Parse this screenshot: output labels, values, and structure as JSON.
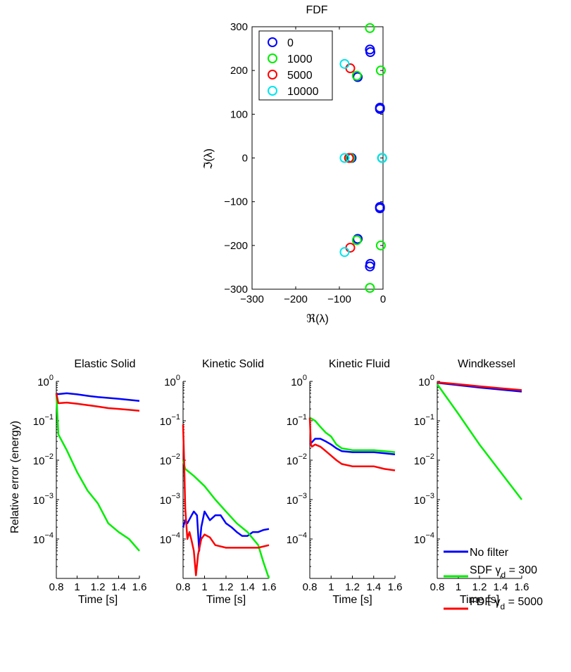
{
  "chart_data": [
    {
      "type": "scatter",
      "title": "FDF",
      "xlabel": "ℜ(λ)",
      "ylabel": "ℑ(λ)",
      "xlim": [
        -300,
        0
      ],
      "ylim": [
        -300,
        300
      ],
      "xticks": [
        -300,
        -200,
        -100,
        0
      ],
      "xtick_labels": [
        "−300",
        "−200",
        "−100",
        "0"
      ],
      "yticks": [
        -300,
        -200,
        -100,
        0,
        100,
        200,
        300
      ],
      "ytick_labels": [
        "−300",
        "−200",
        "−100",
        "0",
        "100",
        "200",
        "300"
      ],
      "marker": "open-circle",
      "legend_position": "top-left",
      "series": [
        {
          "name": "0",
          "color": "#0000ff",
          "points": [
            [
              -30,
              248
            ],
            [
              -29,
              242
            ],
            [
              -7,
              115
            ],
            [
              -7,
              112
            ],
            [
              -7,
              -112
            ],
            [
              -7,
              -115
            ],
            [
              -29,
              -242
            ],
            [
              -30,
              -248
            ],
            [
              -58,
              185
            ],
            [
              -58,
              -185
            ],
            [
              -72,
              0
            ],
            [
              -2,
              0
            ]
          ]
        },
        {
          "name": "1000",
          "color": "#00ee00",
          "points": [
            [
              -30,
              297
            ],
            [
              -5,
              200
            ],
            [
              -5,
              -200
            ],
            [
              -30,
              -297
            ],
            [
              -60,
              188
            ],
            [
              -60,
              -188
            ],
            [
              -75,
              0
            ],
            [
              -2,
              0
            ]
          ]
        },
        {
          "name": "5000",
          "color": "#ff0000",
          "points": [
            [
              -75,
              205
            ],
            [
              -75,
              -205
            ],
            [
              -78,
              0
            ]
          ]
        },
        {
          "name": "10000",
          "color": "#00e5ee",
          "points": [
            [
              -88,
              215
            ],
            [
              -88,
              -215
            ],
            [
              -88,
              0
            ],
            [
              -2,
              0
            ]
          ]
        }
      ]
    },
    {
      "type": "line",
      "title": "Elastic Solid",
      "ylabel": "Relative error (energy)",
      "xlabel": "Time [s]",
      "xlim": [
        0.8,
        1.6
      ],
      "ylim_log10": [
        -5,
        0
      ],
      "series": [
        {
          "name": "No filter",
          "color": "#0000ff",
          "x": [
            0.8,
            0.9,
            1.0,
            1.1,
            1.2,
            1.3,
            1.4,
            1.5,
            1.6
          ],
          "y": [
            0.47,
            0.5,
            0.47,
            0.43,
            0.4,
            0.38,
            0.36,
            0.34,
            0.32
          ]
        },
        {
          "name": "SDF γd = 300",
          "color": "#00ee00",
          "x": [
            0.8,
            0.82,
            0.9,
            1.0,
            1.1,
            1.2,
            1.3,
            1.4,
            1.5,
            1.6
          ],
          "y": [
            0.5,
            0.045,
            0.018,
            0.005,
            0.0017,
            0.0008,
            0.00025,
            0.00015,
            0.0001,
            5e-05
          ]
        },
        {
          "name": "FDF γd = 5000",
          "color": "#ff0000",
          "x": [
            0.8,
            0.82,
            0.9,
            1.0,
            1.1,
            1.2,
            1.3,
            1.4,
            1.5,
            1.6
          ],
          "y": [
            0.5,
            0.28,
            0.29,
            0.27,
            0.25,
            0.23,
            0.21,
            0.2,
            0.19,
            0.18
          ]
        }
      ]
    },
    {
      "type": "line",
      "title": "Kinetic Solid",
      "xlabel": "Time [s]",
      "xlim": [
        0.8,
        1.6
      ],
      "ylim_log10": [
        -5,
        0
      ],
      "series": [
        {
          "name": "No filter",
          "color": "#0000ff",
          "x": [
            0.8,
            0.82,
            0.84,
            0.88,
            0.9,
            0.93,
            0.95,
            0.97,
            1.0,
            1.05,
            1.1,
            1.15,
            1.2,
            1.25,
            1.3,
            1.35,
            1.4,
            1.45,
            1.5,
            1.55,
            1.6
          ],
          "y": [
            0.0002,
            0.0003,
            0.00025,
            0.0004,
            0.0005,
            0.0004,
            5e-05,
            0.0002,
            0.0005,
            0.0003,
            0.0004,
            0.0004,
            0.00025,
            0.0002,
            0.00015,
            0.00012,
            0.00012,
            0.00015,
            0.00015,
            0.00017,
            0.00018
          ]
        },
        {
          "name": "SDF γd = 300",
          "color": "#00ee00",
          "x": [
            0.8,
            0.82,
            0.9,
            1.0,
            1.1,
            1.2,
            1.3,
            1.4,
            1.5,
            1.55,
            1.6
          ],
          "y": [
            0.01,
            0.006,
            0.004,
            0.0022,
            0.001,
            0.0005,
            0.00025,
            0.00015,
            7e-05,
            2.5e-05,
            1e-05
          ]
        },
        {
          "name": "FDF γd = 5000",
          "color": "#ff0000",
          "x": [
            0.8,
            0.81,
            0.82,
            0.84,
            0.86,
            0.88,
            0.9,
            0.92,
            0.94,
            0.97,
            1.0,
            1.05,
            1.1,
            1.2,
            1.3,
            1.4,
            1.5,
            1.6
          ],
          "y": [
            0.08,
            0.01,
            0.0006,
            0.0001,
            0.00015,
            9e-05,
            5e-05,
            1.2e-05,
            4e-05,
            0.0001,
            0.00013,
            0.00011,
            7e-05,
            6e-05,
            6e-05,
            6e-05,
            6e-05,
            7e-05
          ]
        }
      ]
    },
    {
      "type": "line",
      "title": "Kinetic Fluid",
      "xlabel": "Time [s]",
      "xlim": [
        0.8,
        1.6
      ],
      "ylim_log10": [
        -5,
        0
      ],
      "series": [
        {
          "name": "No filter",
          "color": "#0000ff",
          "x": [
            0.8,
            0.85,
            0.9,
            0.95,
            1.0,
            1.05,
            1.1,
            1.2,
            1.3,
            1.4,
            1.5,
            1.6
          ],
          "y": [
            0.025,
            0.035,
            0.035,
            0.03,
            0.025,
            0.02,
            0.017,
            0.016,
            0.016,
            0.016,
            0.015,
            0.014
          ]
        },
        {
          "name": "SDF γd = 300",
          "color": "#00ee00",
          "x": [
            0.8,
            0.85,
            0.9,
            0.95,
            1.0,
            1.05,
            1.1,
            1.2,
            1.3,
            1.4,
            1.5,
            1.6
          ],
          "y": [
            0.12,
            0.1,
            0.07,
            0.05,
            0.04,
            0.025,
            0.02,
            0.018,
            0.018,
            0.018,
            0.017,
            0.016
          ]
        },
        {
          "name": "FDF γd = 5000",
          "color": "#ff0000",
          "x": [
            0.8,
            0.81,
            0.82,
            0.85,
            0.9,
            0.95,
            1.0,
            1.05,
            1.1,
            1.2,
            1.3,
            1.4,
            1.5,
            1.6
          ],
          "y": [
            0.12,
            0.025,
            0.022,
            0.025,
            0.022,
            0.017,
            0.013,
            0.01,
            0.008,
            0.007,
            0.007,
            0.007,
            0.006,
            0.0055
          ]
        }
      ]
    },
    {
      "type": "line",
      "title": "Windkessel",
      "xlabel": "Time [s]",
      "xlim": [
        0.8,
        1.6
      ],
      "ylim_log10": [
        -5,
        0
      ],
      "legend_position": "bottom-right",
      "series": [
        {
          "name": "No filter",
          "color": "#0000ff",
          "x": [
            0.8,
            1.0,
            1.2,
            1.4,
            1.6
          ],
          "y": [
            0.92,
            0.8,
            0.7,
            0.62,
            0.55
          ]
        },
        {
          "name": "SDF γd = 300",
          "color": "#00ee00",
          "x": [
            0.8,
            1.0,
            1.2,
            1.4,
            1.6
          ],
          "y": [
            0.85,
            0.15,
            0.025,
            0.005,
            0.001
          ]
        },
        {
          "name": "FDF γd = 5000",
          "color": "#ff0000",
          "x": [
            0.8,
            1.0,
            1.2,
            1.4,
            1.6
          ],
          "y": [
            0.95,
            0.85,
            0.75,
            0.67,
            0.6
          ]
        }
      ]
    }
  ],
  "shared": {
    "log_ytick_exponents": [
      "0",
      "−1",
      "−2",
      "−3",
      "−4"
    ],
    "log_ytick_base": "10",
    "xtick_labels": [
      "0.8",
      "1",
      "1.2",
      "1.4",
      "1.6"
    ],
    "legend": {
      "no_filter": "No filter",
      "sdf_prefix": "SDF γ",
      "sdf_sub": "d",
      "sdf_suffix": " = 300",
      "fdf_prefix": "FDF γ",
      "fdf_sub": "d",
      "fdf_suffix": " = 5000"
    }
  }
}
